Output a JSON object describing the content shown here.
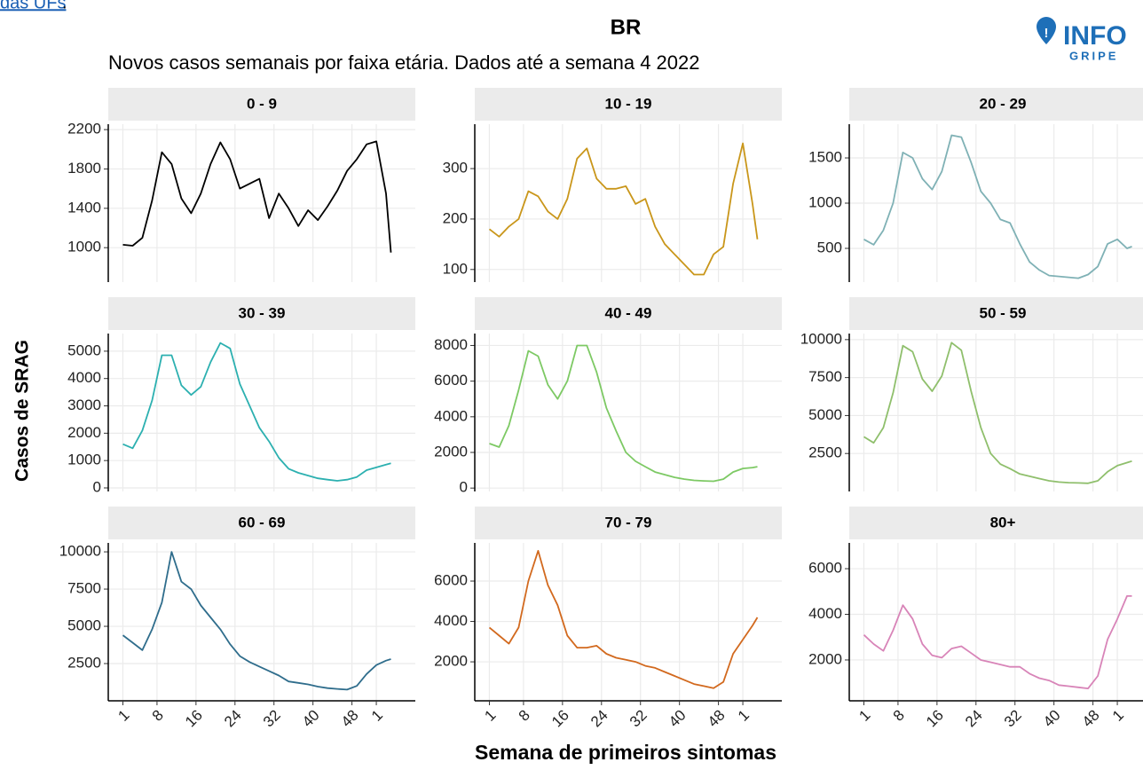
{
  "header": {
    "link": "das UFs",
    "trail": "."
  },
  "logo": {
    "top": "INFO",
    "bottom": "GRIPE"
  },
  "chart_data": {
    "type": "line",
    "title": "BR",
    "subtitle": "Novos casos semanais por faixa etária. Dados até a semana 4 2022",
    "ylabel": "Casos de SRAG",
    "xlabel": "Semana de primeiros sintomas",
    "x": [
      1,
      3,
      5,
      7,
      9,
      11,
      13,
      15,
      17,
      19,
      21,
      23,
      25,
      27,
      29,
      31,
      33,
      35,
      37,
      39,
      41,
      43,
      45,
      47,
      49,
      51,
      53,
      55,
      56
    ],
    "xlim": [
      -2,
      61
    ],
    "xticks": [
      1,
      8,
      16,
      24,
      32,
      40,
      48,
      {
        "value": 53,
        "label": "1"
      }
    ],
    "grid": true,
    "panels": [
      {
        "title": "0 - 9",
        "color": "#000000",
        "ylim": [
          650,
          2255
        ],
        "yticks": [
          1000,
          1400,
          1800,
          2200
        ],
        "values": [
          1030,
          1020,
          1100,
          1480,
          1970,
          1850,
          1500,
          1350,
          1550,
          1850,
          2070,
          1900,
          1600,
          1650,
          1700,
          1300,
          1550,
          1400,
          1220,
          1380,
          1280,
          1420,
          1580,
          1780,
          1900,
          2050,
          2080,
          1550,
          950
        ]
      },
      {
        "title": "10 - 19",
        "color": "#c9961a",
        "ylim": [
          75,
          388
        ],
        "yticks": [
          100,
          200,
          300
        ],
        "values": [
          180,
          165,
          185,
          200,
          255,
          245,
          215,
          200,
          240,
          320,
          340,
          280,
          260,
          260,
          265,
          230,
          240,
          185,
          150,
          130,
          110,
          90,
          90,
          130,
          145,
          270,
          350,
          230,
          160
        ]
      },
      {
        "title": "20 - 29",
        "color": "#7fb1b5",
        "ylim": [
          127,
          1873
        ],
        "yticks": [
          500,
          1000,
          1500
        ],
        "values": [
          600,
          540,
          700,
          1000,
          1560,
          1500,
          1270,
          1150,
          1350,
          1750,
          1730,
          1450,
          1130,
          1000,
          820,
          780,
          550,
          350,
          260,
          200,
          190,
          180,
          170,
          210,
          300,
          550,
          600,
          500,
          520
        ]
      },
      {
        "title": "30 - 39",
        "color": "#2cb0b0",
        "ylim": [
          -130,
          5645
        ],
        "yticks": [
          0,
          1000,
          2000,
          3000,
          4000,
          5000
        ],
        "values": [
          1600,
          1450,
          2100,
          3200,
          4850,
          4850,
          3750,
          3400,
          3700,
          4600,
          5300,
          5100,
          3800,
          3000,
          2200,
          1700,
          1100,
          700,
          550,
          450,
          350,
          300,
          260,
          300,
          400,
          650,
          750,
          850,
          900
        ]
      },
      {
        "title": "40 - 49",
        "color": "#7dc964",
        "ylim": [
          -190,
          8670
        ],
        "yticks": [
          0,
          2000,
          4000,
          6000,
          8000
        ],
        "values": [
          2500,
          2300,
          3500,
          5500,
          7700,
          7400,
          5800,
          5000,
          6000,
          8000,
          8000,
          6500,
          4500,
          3200,
          2000,
          1500,
          1200,
          900,
          750,
          600,
          500,
          430,
          400,
          380,
          500,
          900,
          1100,
          1150,
          1200
        ]
      },
      {
        "title": "50 - 59",
        "color": "#8fbf6c",
        "ylim": [
          0,
          10400
        ],
        "yticks": [
          2500,
          5000,
          7500,
          10000
        ],
        "values": [
          3600,
          3200,
          4200,
          6500,
          9600,
          9200,
          7400,
          6600,
          7600,
          9800,
          9300,
          6600,
          4200,
          2500,
          1800,
          1500,
          1150,
          1000,
          850,
          700,
          620,
          580,
          560,
          540,
          700,
          1300,
          1700,
          1900,
          2000
        ]
      },
      {
        "title": "60 - 69",
        "color": "#2f6d8c",
        "ylim": [
          0,
          10600
        ],
        "yticks": [
          2500,
          5000,
          7500,
          10000
        ],
        "values": [
          4400,
          3900,
          3400,
          4800,
          6600,
          10000,
          8000,
          7500,
          6400,
          5600,
          4800,
          3800,
          3000,
          2600,
          2300,
          2000,
          1700,
          1300,
          1200,
          1100,
          950,
          850,
          800,
          750,
          1000,
          1800,
          2400,
          2700,
          2800
        ]
      },
      {
        "title": "70 - 79",
        "color": "#d2691e",
        "ylim": [
          70,
          7890
        ],
        "yticks": [
          2000,
          4000,
          6000
        ],
        "values": [
          3700,
          3300,
          2900,
          3700,
          6000,
          7500,
          5800,
          4800,
          3300,
          2700,
          2700,
          2800,
          2400,
          2200,
          2100,
          2000,
          1800,
          1700,
          1500,
          1300,
          1100,
          900,
          800,
          700,
          1000,
          2400,
          3100,
          3800,
          4200
        ]
      },
      {
        "title": "80+",
        "color": "#d884b8",
        "ylim": [
          210,
          7130
        ],
        "yticks": [
          2000,
          4000,
          6000
        ],
        "values": [
          3100,
          2700,
          2400,
          3300,
          4400,
          3800,
          2700,
          2200,
          2100,
          2500,
          2600,
          2300,
          2000,
          1900,
          1800,
          1700,
          1700,
          1400,
          1200,
          1100,
          900,
          850,
          800,
          750,
          1300,
          2900,
          3800,
          4800,
          4800
        ]
      }
    ]
  }
}
